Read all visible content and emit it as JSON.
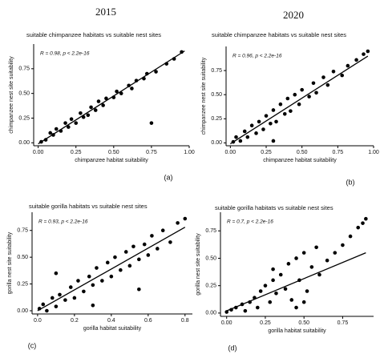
{
  "header": {
    "years": [
      "2015",
      "2020"
    ]
  },
  "chart_data": [
    {
      "type": "scatter",
      "title": "suitable chimpanzee habitats vs suitable nest sites",
      "xlabel": "chimpanzee habitat suitability",
      "ylabel": "chimpanzee nest site suitability",
      "annotation": "R = 0.98, p < 2.2e-16",
      "panel_label": "(a)",
      "color": "#000000",
      "xlim": [
        -0.03,
        1.0
      ],
      "ylim": [
        -0.03,
        1.0
      ],
      "xticks": [
        {
          "value": 0,
          "label": "0.00"
        },
        {
          "value": 0.25,
          "label": "0.25"
        },
        {
          "value": 0.5,
          "label": "0.50"
        },
        {
          "value": 0.75,
          "label": "0.75"
        },
        {
          "value": 1,
          "label": "1.00"
        }
      ],
      "yticks": [
        {
          "value": 0,
          "label": "0.00"
        },
        {
          "value": 0.25,
          "label": "0.25"
        },
        {
          "value": 0.5,
          "label": "0.50"
        },
        {
          "value": 0.75,
          "label": "0.75"
        }
      ],
      "x": [
        0.02,
        0.05,
        0.08,
        0.1,
        0.12,
        0.15,
        0.18,
        0.2,
        0.22,
        0.25,
        0.28,
        0.3,
        0.33,
        0.35,
        0.38,
        0.4,
        0.43,
        0.45,
        0.5,
        0.52,
        0.55,
        0.6,
        0.62,
        0.65,
        0.7,
        0.72,
        0.78,
        0.85,
        0.9,
        0.95,
        0.75
      ],
      "y": [
        0.01,
        0.03,
        0.1,
        0.08,
        0.14,
        0.12,
        0.2,
        0.16,
        0.24,
        0.2,
        0.3,
        0.26,
        0.28,
        0.36,
        0.33,
        0.42,
        0.38,
        0.45,
        0.46,
        0.52,
        0.5,
        0.58,
        0.55,
        0.63,
        0.65,
        0.7,
        0.72,
        0.8,
        0.85,
        0.92,
        0.2
      ],
      "fit": {
        "x": [
          0,
          0.97
        ],
        "y": [
          -0.01,
          0.93
        ]
      }
    },
    {
      "type": "scatter",
      "title": "suitable chimpanzee habitats vs suitable nest sites",
      "xlabel": "chimpanzee habitat suitability",
      "ylabel": "chimpanzee nest site suitability",
      "annotation": "R = 0.96, p < 2.2e-16",
      "panel_label": "(b)",
      "color": "#000000",
      "xlim": [
        -0.03,
        1.0
      ],
      "ylim": [
        -0.03,
        1.0
      ],
      "xticks": [
        {
          "value": 0,
          "label": "0.00"
        },
        {
          "value": 0.25,
          "label": "0.25"
        },
        {
          "value": 0.5,
          "label": "0.50"
        },
        {
          "value": 0.75,
          "label": "0.75"
        },
        {
          "value": 1,
          "label": "1.00"
        }
      ],
      "yticks": [
        {
          "value": 0,
          "label": "0.00"
        },
        {
          "value": 0.25,
          "label": "0.25"
        },
        {
          "value": 0.5,
          "label": "0.50"
        },
        {
          "value": 0.75,
          "label": "0.75"
        }
      ],
      "x": [
        0.02,
        0.04,
        0.07,
        0.1,
        0.12,
        0.15,
        0.18,
        0.2,
        0.23,
        0.25,
        0.28,
        0.3,
        0.32,
        0.35,
        0.38,
        0.4,
        0.42,
        0.45,
        0.48,
        0.5,
        0.55,
        0.58,
        0.6,
        0.65,
        0.68,
        0.72,
        0.78,
        0.82,
        0.88,
        0.93,
        0.96,
        0.3
      ],
      "y": [
        0.01,
        0.06,
        0.02,
        0.12,
        0.06,
        0.18,
        0.1,
        0.22,
        0.14,
        0.28,
        0.2,
        0.34,
        0.22,
        0.4,
        0.3,
        0.46,
        0.33,
        0.5,
        0.4,
        0.55,
        0.48,
        0.62,
        0.52,
        0.68,
        0.6,
        0.74,
        0.7,
        0.8,
        0.86,
        0.92,
        0.95,
        0.02
      ],
      "fit": {
        "x": [
          0,
          0.96
        ],
        "y": [
          -0.01,
          0.9
        ]
      }
    },
    {
      "type": "scatter",
      "title": "suitable gorilla habitats vs suitable nest sites",
      "xlabel": "gorilla habitat suitability",
      "ylabel": "gorilla nest site suitability",
      "annotation": "R = 0.93, p < 2.2e-16",
      "panel_label": "(c)",
      "color": "#000000",
      "xlim": [
        -0.03,
        0.84
      ],
      "ylim": [
        -0.03,
        0.92
      ],
      "xticks": [
        {
          "value": 0,
          "label": "0.0"
        },
        {
          "value": 0.2,
          "label": "0.2"
        },
        {
          "value": 0.4,
          "label": "0.4"
        },
        {
          "value": 0.6,
          "label": "0.6"
        },
        {
          "value": 0.8,
          "label": "0.8"
        }
      ],
      "yticks": [
        {
          "value": 0,
          "label": "0.00"
        },
        {
          "value": 0.25,
          "label": "0.25"
        },
        {
          "value": 0.5,
          "label": "0.50"
        },
        {
          "value": 0.75,
          "label": "0.75"
        }
      ],
      "x": [
        0.01,
        0.03,
        0.05,
        0.08,
        0.1,
        0.12,
        0.15,
        0.18,
        0.2,
        0.22,
        0.25,
        0.28,
        0.3,
        0.32,
        0.35,
        0.38,
        0.4,
        0.42,
        0.45,
        0.48,
        0.5,
        0.52,
        0.55,
        0.58,
        0.6,
        0.62,
        0.65,
        0.68,
        0.72,
        0.76,
        0.8,
        0.1,
        0.3,
        0.55
      ],
      "y": [
        0.02,
        0.06,
        0.0,
        0.12,
        0.04,
        0.15,
        0.1,
        0.22,
        0.12,
        0.28,
        0.18,
        0.32,
        0.24,
        0.4,
        0.28,
        0.45,
        0.32,
        0.5,
        0.38,
        0.55,
        0.42,
        0.6,
        0.48,
        0.62,
        0.52,
        0.7,
        0.58,
        0.75,
        0.64,
        0.82,
        0.86,
        0.35,
        0.05,
        0.2
      ],
      "fit": {
        "x": [
          0,
          0.8
        ],
        "y": [
          0.0,
          0.78
        ]
      }
    },
    {
      "type": "scatter",
      "title": "suitable gorilla habitats vs suitable nest sites",
      "xlabel": "gorilla habitat suitability",
      "ylabel": "gorilla nest site suitability",
      "annotation": "R = 0.7, p < 2.2e-16",
      "panel_label": "(d)",
      "color": "#000000",
      "xlim": [
        -0.04,
        0.95
      ],
      "ylim": [
        -0.03,
        0.92
      ],
      "xticks": [
        {
          "value": 0,
          "label": "0.00"
        },
        {
          "value": 0.25,
          "label": "0.25"
        },
        {
          "value": 0.5,
          "label": "0.50"
        },
        {
          "value": 0.75,
          "label": "0.75"
        }
      ],
      "yticks": [
        {
          "value": 0,
          "label": "0.00"
        },
        {
          "value": 0.25,
          "label": "0.25"
        },
        {
          "value": 0.5,
          "label": "0.50"
        },
        {
          "value": 0.75,
          "label": "0.75"
        }
      ],
      "x": [
        0.0,
        0.03,
        0.06,
        0.1,
        0.12,
        0.15,
        0.18,
        0.2,
        0.22,
        0.25,
        0.28,
        0.3,
        0.32,
        0.35,
        0.38,
        0.4,
        0.42,
        0.45,
        0.47,
        0.5,
        0.52,
        0.55,
        0.58,
        0.6,
        0.65,
        0.7,
        0.75,
        0.8,
        0.85,
        0.88,
        0.9,
        0.45,
        0.5,
        0.3
      ],
      "y": [
        0.01,
        0.03,
        0.05,
        0.08,
        0.02,
        0.1,
        0.14,
        0.05,
        0.2,
        0.25,
        0.1,
        0.3,
        0.18,
        0.35,
        0.22,
        0.45,
        0.12,
        0.5,
        0.3,
        0.55,
        0.2,
        0.42,
        0.6,
        0.35,
        0.48,
        0.55,
        0.62,
        0.7,
        0.78,
        0.82,
        0.86,
        0.05,
        0.1,
        0.4
      ],
      "fit": {
        "x": [
          0,
          0.9
        ],
        "y": [
          0.02,
          0.55
        ]
      }
    }
  ]
}
